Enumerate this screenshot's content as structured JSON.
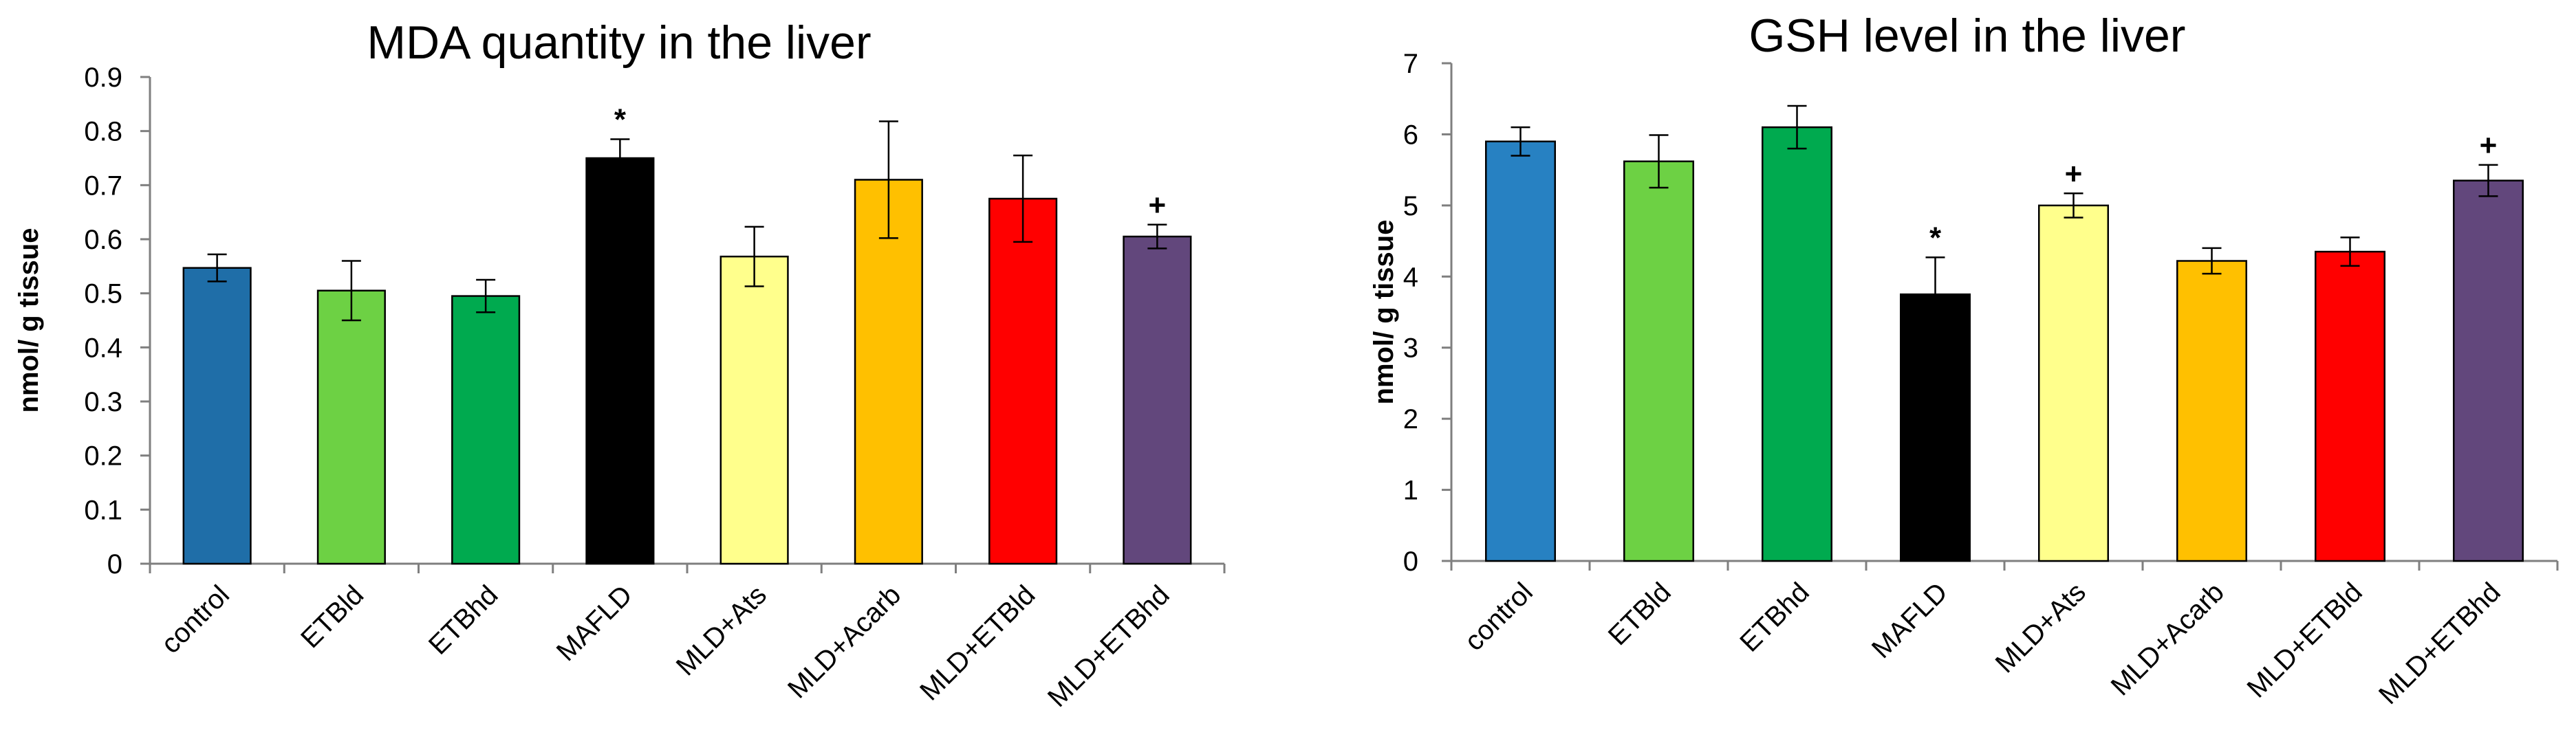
{
  "chart_data": [
    {
      "type": "bar",
      "title": "MDA quantity in the liver",
      "ylabel": "nmol/ g tissue",
      "xlabel": "",
      "ylim": [
        0,
        0.9
      ],
      "yticks": [
        0,
        0.1,
        0.2,
        0.3,
        0.4,
        0.5,
        0.6,
        0.7,
        0.8,
        0.9
      ],
      "ytick_labels": [
        "0",
        "0.1",
        "0.2",
        "0.3",
        "0.4",
        "0.5",
        "0.6",
        "0.7",
        "0.8",
        "0.9"
      ],
      "categories": [
        "control",
        "ETBld",
        "ETBhd",
        "MAFLD",
        "MLD+Ats",
        "MLD+Acarb",
        "MLD+ETBld",
        "MLD+ETBhd"
      ],
      "values": [
        0.547,
        0.505,
        0.495,
        0.75,
        0.568,
        0.71,
        0.675,
        0.605
      ],
      "errors": [
        0.025,
        0.055,
        0.03,
        0.035,
        0.055,
        0.108,
        0.08,
        0.022
      ],
      "annotations": [
        "",
        "",
        "",
        "*",
        "",
        "",
        "",
        "+"
      ],
      "colors": [
        "#1f6ea8",
        "#6dd144",
        "#00aa4f",
        "#000000",
        "#ffff8c",
        "#ffc000",
        "#ff0000",
        "#62477c"
      ]
    },
    {
      "type": "bar",
      "title": "GSH level in the liver",
      "ylabel": "nmol/ g tissue",
      "xlabel": "",
      "ylim": [
        0,
        7
      ],
      "yticks": [
        0,
        1,
        2,
        3,
        4,
        5,
        6,
        7
      ],
      "ytick_labels": [
        "0",
        "1",
        "2",
        "3",
        "4",
        "5",
        "6",
        "7"
      ],
      "categories": [
        "control",
        "ETBld",
        "ETBhd",
        "MAFLD",
        "MLD+Ats",
        "MLD+Acarb",
        "MLD+ETBld",
        "MLD+ETBhd"
      ],
      "values": [
        5.9,
        5.62,
        6.1,
        3.75,
        5.0,
        4.22,
        4.35,
        5.35
      ],
      "errors": [
        0.2,
        0.37,
        0.3,
        0.52,
        0.17,
        0.18,
        0.2,
        0.22
      ],
      "annotations": [
        "",
        "",
        "",
        "*",
        "+",
        "",
        "",
        "+"
      ],
      "colors": [
        "#2781c2",
        "#6dd144",
        "#00aa4f",
        "#000000",
        "#ffff8c",
        "#ffc000",
        "#ff0000",
        "#62477c"
      ]
    }
  ]
}
